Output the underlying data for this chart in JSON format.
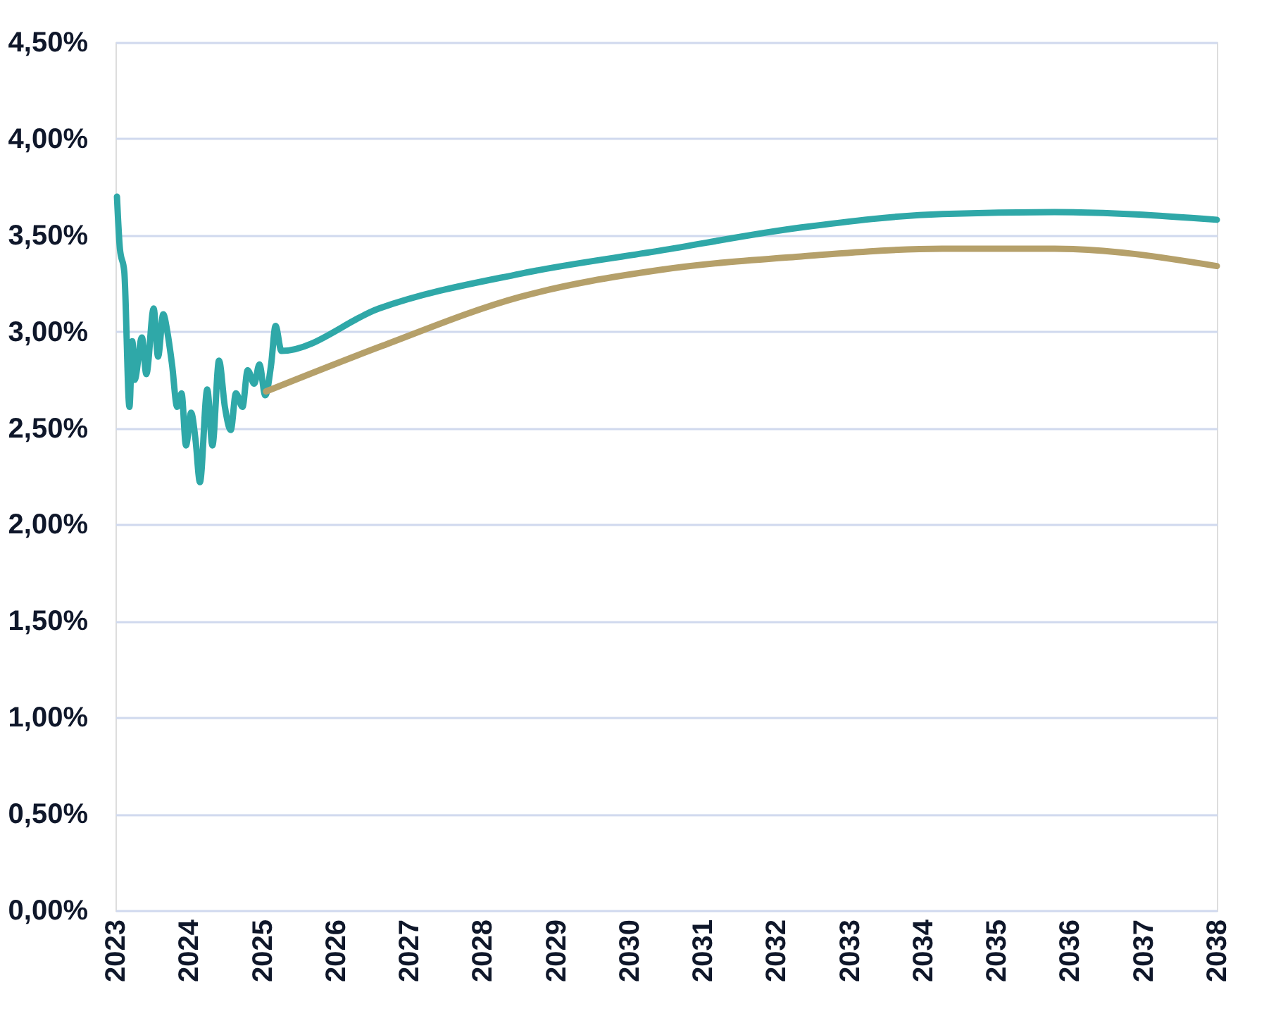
{
  "chart_data": {
    "type": "line",
    "x": [
      2023.02,
      2023.06,
      2023.12,
      2023.19,
      2023.23,
      2023.26,
      2023.36,
      2023.42,
      2023.52,
      2023.58,
      2023.65,
      2023.71,
      2023.77,
      2023.84,
      2023.9,
      2023.96,
      2024.03,
      2024.09,
      2024.15,
      2024.25,
      2024.32,
      2024.41,
      2024.49,
      2024.57,
      2024.64,
      2024.73,
      2024.8,
      2024.89,
      2024.96,
      2025.04,
      2025.12,
      2025.18,
      2025.26,
      2026.59,
      2028.51,
      2030.42,
      2032.34,
      2034.26,
      2035.79,
      2038
    ],
    "series": [
      {
        "color": "#2fa8a8",
        "values": [
          3.7,
          3.43,
          3.31,
          2.61,
          2.95,
          2.75,
          2.97,
          2.78,
          3.12,
          2.87,
          3.09,
          2.99,
          2.83,
          2.61,
          2.68,
          2.41,
          2.58,
          2.44,
          2.22,
          2.7,
          2.41,
          2.85,
          2.61,
          2.49,
          2.68,
          2.61,
          2.8,
          2.73,
          2.83,
          2.67,
          2.83,
          3.03,
          2.9,
          3.12,
          3.3,
          3.42,
          3.54,
          3.61,
          3.62,
          3.58
        ]
      },
      {
        "color": "#b5a06a",
        "x": [
          2025.05,
          2026.59,
          2028.51,
          2030.42,
          2032.34,
          2034.26,
          2035.79,
          2038
        ],
        "values": [
          2.69,
          2.92,
          3.18,
          3.32,
          3.39,
          3.43,
          3.43,
          3.34
        ]
      }
    ],
    "xlim": [
      2023,
      2038
    ],
    "xticks": [
      2023,
      2024,
      2025,
      2026,
      2027,
      2028,
      2029,
      2030,
      2031,
      2032,
      2033,
      2034,
      2035,
      2036,
      2037,
      2038
    ],
    "ylim": [
      0,
      4.5
    ],
    "yticks": [
      {
        "value": 0,
        "label": "0,00%"
      },
      {
        "value": 0.5,
        "label": "0,50%"
      },
      {
        "value": 1,
        "label": "1,00%"
      },
      {
        "value": 1.5,
        "label": "1,50%"
      },
      {
        "value": 2,
        "label": "2,00%"
      },
      {
        "value": 2.5,
        "label": "2,50%"
      },
      {
        "value": 3,
        "label": "3,00%"
      },
      {
        "value": 3.5,
        "label": "3,50%"
      },
      {
        "value": 4,
        "label": "4,00%"
      },
      {
        "value": 4.5,
        "label": "4,50%"
      }
    ],
    "grid": "y",
    "legend": false,
    "marker": "none",
    "line_style": "solid"
  }
}
